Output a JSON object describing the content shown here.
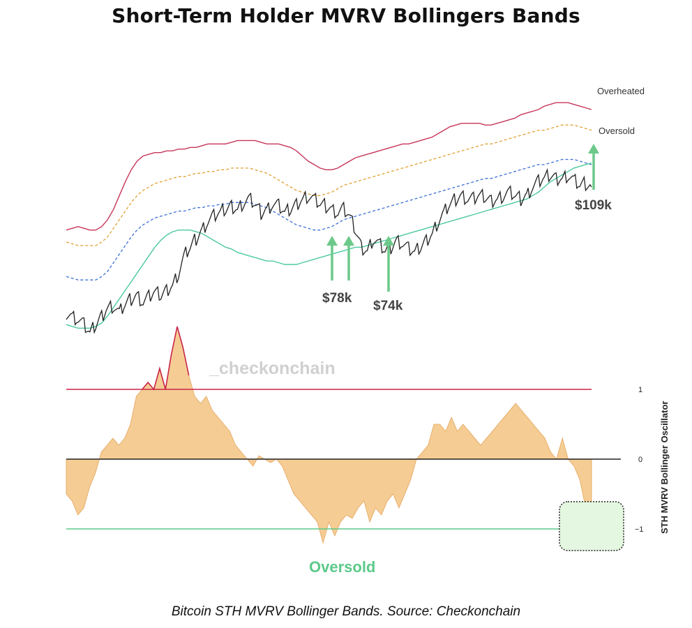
{
  "title": "Short-Term Holder MVRV Bollingers Bands",
  "caption": "Bitcoin STH MVRV Bollinger Bands. Source: Checkonchain",
  "watermark": "_checkonchain",
  "colors": {
    "price": "#222222",
    "upper_band": "#c8355a",
    "mid_band_orange": "#e0a030",
    "mid_band_blue": "#3a6ed8",
    "lower_band": "#4cc9a0",
    "oscillator_fill": "#f5cc93",
    "oscillator_line": "#e3a55e",
    "overheated_line": "#c8244a",
    "oversold_line": "#5cc98a",
    "zero_line": "#222222",
    "arrow": "#6cc98a"
  },
  "chart_data": [
    {
      "type": "line",
      "title": "Short-Term Holder MVRV Bollingers Bands",
      "band_labels": {
        "upper": "Overheated",
        "lower": "Oversold"
      },
      "annotations": [
        "$78k",
        "$74k",
        "$109k"
      ],
      "series": [
        {
          "values": [
            0.62,
            0.6,
            0.58,
            0.55,
            0.5,
            0.55,
            0.6,
            0.65,
            0.66,
            0.62,
            0.67,
            0.7,
            0.72,
            0.68,
            0.71,
            0.74,
            0.72,
            0.75,
            0.78,
            0.85,
            0.95,
            1.0,
            1.05,
            1.1,
            1.15,
            1.18,
            1.2,
            1.22,
            1.24,
            1.22,
            1.26,
            1.28,
            1.25,
            1.2,
            1.22,
            1.25,
            1.24,
            1.2,
            1.22,
            1.25,
            1.28,
            1.3,
            1.28,
            1.25,
            1.24,
            1.22,
            1.2,
            1.22,
            1.18,
            1.1,
            1.0,
            0.98,
            1.05,
            1.02,
            0.98,
            1.0,
            1.04,
            1.02,
            0.99,
            0.97,
            1.0,
            1.04,
            1.08,
            1.15,
            1.2,
            1.25,
            1.28,
            1.3,
            1.28,
            1.28,
            1.3,
            1.29,
            1.27,
            1.28,
            1.3,
            1.32,
            1.3,
            1.28,
            1.3,
            1.35,
            1.38,
            1.4,
            1.42,
            1.4,
            1.4,
            1.42,
            1.39,
            1.36,
            1.37,
            1.35
          ]
        },
        {
          "values": [
            1.1,
            1.11,
            1.12,
            1.11,
            1.1,
            1.1,
            1.12,
            1.16,
            1.22,
            1.3,
            1.38,
            1.45,
            1.5,
            1.53,
            1.54,
            1.55,
            1.55,
            1.56,
            1.56,
            1.57,
            1.57,
            1.58,
            1.58,
            1.59,
            1.6,
            1.6,
            1.6,
            1.6,
            1.61,
            1.62,
            1.62,
            1.62,
            1.62,
            1.61,
            1.6,
            1.6,
            1.6,
            1.59,
            1.58,
            1.56,
            1.53,
            1.5,
            1.48,
            1.46,
            1.45,
            1.45,
            1.46,
            1.48,
            1.5,
            1.52,
            1.53,
            1.54,
            1.55,
            1.56,
            1.57,
            1.58,
            1.59,
            1.6,
            1.6,
            1.61,
            1.62,
            1.63,
            1.64,
            1.66,
            1.68,
            1.7,
            1.71,
            1.72,
            1.72,
            1.72,
            1.72,
            1.71,
            1.71,
            1.72,
            1.73,
            1.74,
            1.75,
            1.77,
            1.78,
            1.79,
            1.8,
            1.82,
            1.83,
            1.84,
            1.84,
            1.84,
            1.83,
            1.82,
            1.81,
            1.8
          ]
        },
        {
          "values": [
            0.95,
            0.94,
            0.93,
            0.93,
            0.93,
            0.93,
            0.95,
            0.98,
            1.03,
            1.08,
            1.13,
            1.18,
            1.22,
            1.25,
            1.27,
            1.29,
            1.3,
            1.31,
            1.32,
            1.33,
            1.33,
            1.34,
            1.35,
            1.35,
            1.36,
            1.36,
            1.37,
            1.37,
            1.38,
            1.38,
            1.38,
            1.38,
            1.37,
            1.36,
            1.35,
            1.33,
            1.31,
            1.29,
            1.27,
            1.25,
            1.24,
            1.23,
            1.22,
            1.22,
            1.23,
            1.24,
            1.26,
            1.28,
            1.29,
            1.3,
            1.31,
            1.32,
            1.33,
            1.34,
            1.35,
            1.36,
            1.37,
            1.38,
            1.39,
            1.4,
            1.41,
            1.42,
            1.43,
            1.44,
            1.45,
            1.46,
            1.47,
            1.48,
            1.49,
            1.5,
            1.51,
            1.52,
            1.52,
            1.53,
            1.54,
            1.55,
            1.56,
            1.57,
            1.58,
            1.59,
            1.6,
            1.6,
            1.61,
            1.62,
            1.63,
            1.63,
            1.63,
            1.62,
            1.61,
            1.6
          ]
        },
        {
          "values": [
            0.55,
            0.54,
            0.53,
            0.53,
            0.53,
            0.54,
            0.56,
            0.6,
            0.65,
            0.7,
            0.75,
            0.8,
            0.85,
            0.9,
            0.95,
            1.0,
            1.04,
            1.07,
            1.09,
            1.1,
            1.1,
            1.1,
            1.09,
            1.08,
            1.06,
            1.04,
            1.02,
            1.0,
            0.99,
            0.97,
            0.96,
            0.95,
            0.94,
            0.93,
            0.92,
            0.92,
            0.91,
            0.9,
            0.9,
            0.9,
            0.91,
            0.92,
            0.93,
            0.94,
            0.95,
            0.96,
            0.97,
            0.98,
            0.99,
            1.0,
            1.0,
            1.01,
            1.02,
            1.03,
            1.04,
            1.05,
            1.06,
            1.07,
            1.08,
            1.09,
            1.1,
            1.11,
            1.12,
            1.13,
            1.14,
            1.15,
            1.16,
            1.17,
            1.18,
            1.19,
            1.2,
            1.21,
            1.22,
            1.23,
            1.24,
            1.25,
            1.26,
            1.27,
            1.28,
            1.3,
            1.32,
            1.35,
            1.38,
            1.4,
            1.42,
            1.44,
            1.46,
            1.47,
            1.48,
            1.49
          ]
        }
      ]
    },
    {
      "type": "area",
      "ylabel": "STH MVRV Bollinger Oscillator",
      "ylim": [
        -1.4,
        1.6
      ],
      "y_ticks": [
        "1",
        "0",
        "−1"
      ],
      "lines": [
        {
          "value": 1,
          "label": "Overheated"
        },
        {
          "value": 0,
          "label": "0"
        },
        {
          "value": -1,
          "label": "Oversold"
        }
      ],
      "callout": "Oversold",
      "values": [
        -0.5,
        -0.6,
        -0.8,
        -0.7,
        -0.4,
        -0.2,
        0.1,
        0.2,
        0.3,
        0.2,
        0.3,
        0.5,
        0.9,
        1.0,
        1.1,
        1.0,
        1.3,
        1.0,
        1.5,
        1.9,
        1.6,
        1.2,
        0.9,
        0.8,
        0.9,
        0.7,
        0.6,
        0.5,
        0.4,
        0.2,
        0.1,
        0.0,
        -0.1,
        0.05,
        0.0,
        -0.05,
        0.0,
        -0.1,
        -0.3,
        -0.5,
        -0.6,
        -0.7,
        -0.8,
        -0.9,
        -1.2,
        -0.9,
        -1.1,
        -0.9,
        -0.8,
        -0.85,
        -0.7,
        -0.6,
        -0.9,
        -0.7,
        -0.8,
        -0.6,
        -0.5,
        -0.7,
        -0.5,
        -0.3,
        0.0,
        0.1,
        0.2,
        0.5,
        0.5,
        0.4,
        0.6,
        0.4,
        0.5,
        0.4,
        0.3,
        0.2,
        0.3,
        0.4,
        0.5,
        0.6,
        0.7,
        0.8,
        0.7,
        0.6,
        0.5,
        0.4,
        0.3,
        0.1,
        0.0,
        0.3,
        0.0,
        -0.1,
        -0.3,
        -0.7,
        -0.9
      ]
    }
  ]
}
